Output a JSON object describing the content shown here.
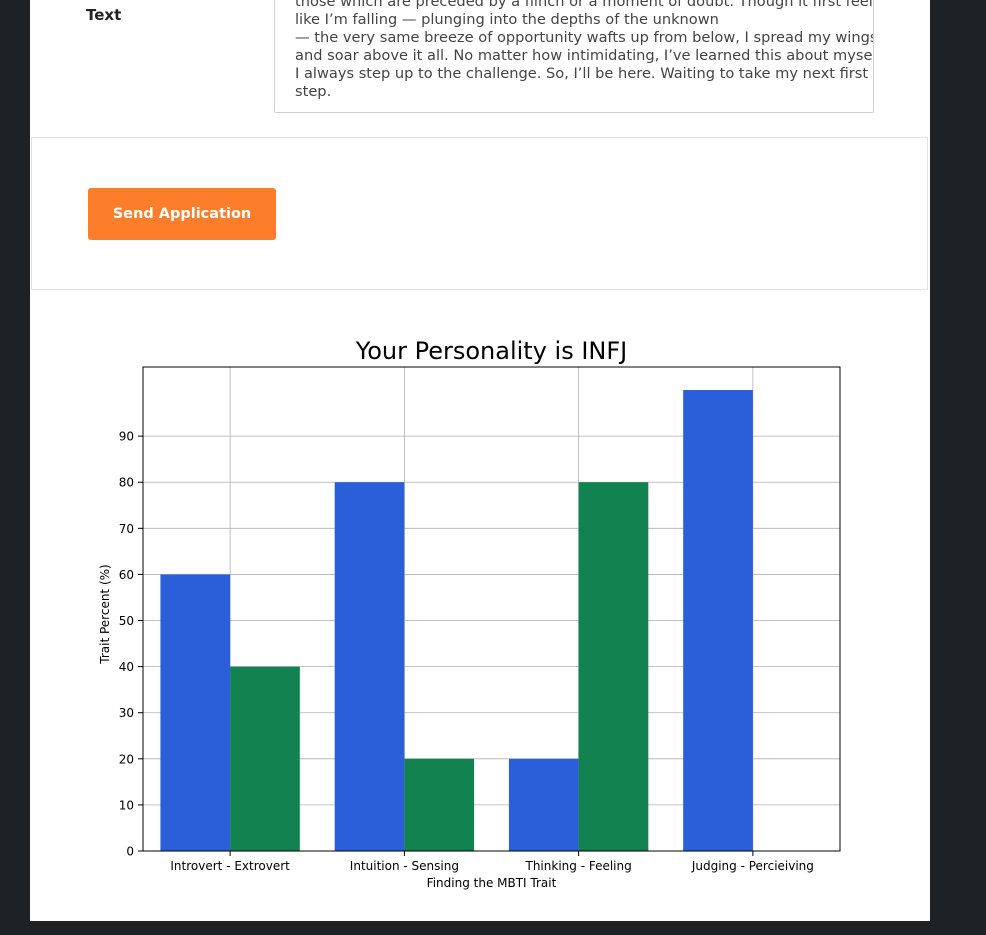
{
  "form": {
    "field_label": "Text",
    "text_lines": [
      "those which are preceded by a flinch or a moment of doubt. Though it first feels",
      "like I’m falling — plunging into the depths of the unknown",
      "— the very same breeze of opportunity wafts up from below, I spread my wings",
      "and soar above it all. No matter how intimidating, I’ve learned this about myself:",
      "I always step up to the challenge. So, I’ll be here. Waiting to take my next first",
      "step."
    ],
    "send_label": "Send Application"
  },
  "colors": {
    "button": "#fd7e2a",
    "series_1": "#2b5fd9",
    "series_2": "#128250",
    "page_bg": "#1f2224"
  },
  "chart_data": {
    "type": "bar",
    "title": "Your Personality is INFJ",
    "xlabel": "Finding the MBTI Trait",
    "ylabel": "Trait Percent (%)",
    "categories": [
      "Introvert - Extrovert",
      "Intuition - Sensing",
      "Thinking - Feeling",
      "Judging - Percieiving"
    ],
    "series": [
      {
        "values": [
          60,
          80,
          20,
          100
        ]
      },
      {
        "values": [
          40,
          20,
          80,
          0
        ]
      }
    ],
    "yticks": [
      0,
      10,
      20,
      30,
      40,
      50,
      60,
      70,
      80,
      90
    ],
    "ylim": [
      0,
      105
    ],
    "grid": true
  }
}
